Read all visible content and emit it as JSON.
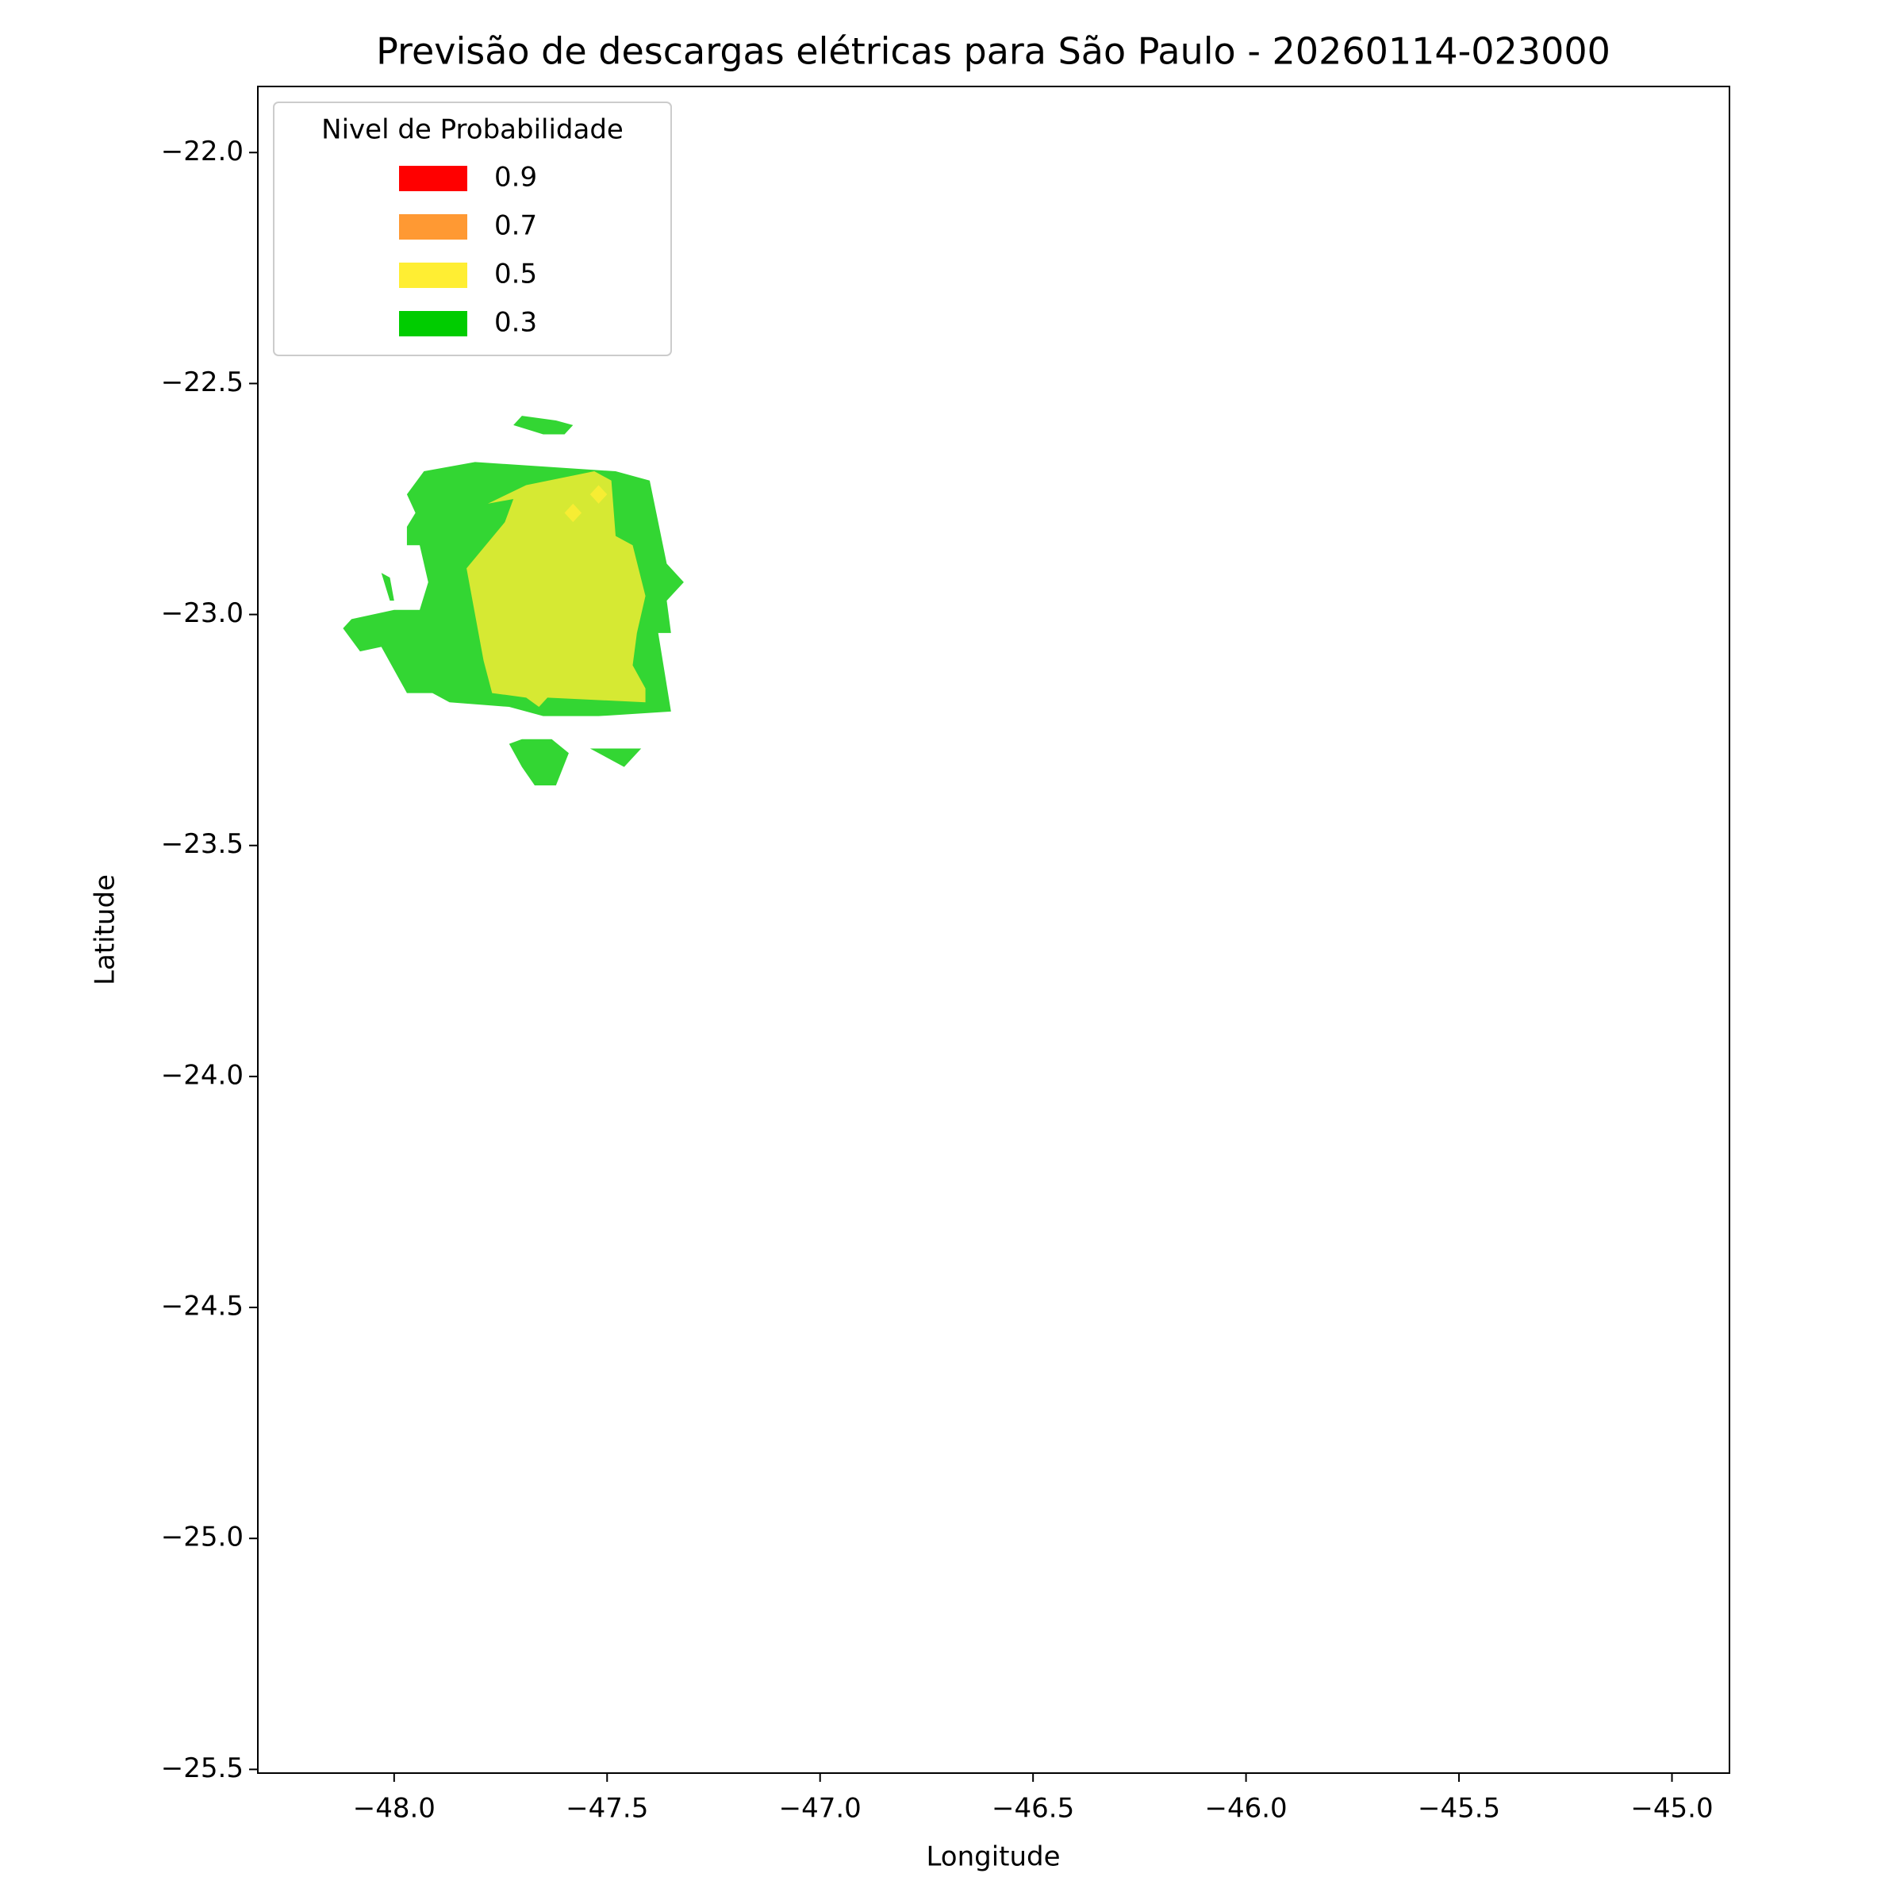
{
  "chart_data": {
    "type": "contour",
    "title": "Previsão de descargas elétricas para São Paulo - 20260114-023000",
    "xlabel": "Longitude",
    "ylabel": "Latitude",
    "xlim": [
      -48.32,
      -44.865
    ],
    "ylim": [
      -25.508,
      -21.857
    ],
    "xticks": [
      {
        "value": -48.0,
        "label": "−48.0"
      },
      {
        "value": -47.5,
        "label": "−47.5"
      },
      {
        "value": -47.0,
        "label": "−47.0"
      },
      {
        "value": -46.5,
        "label": "−46.5"
      },
      {
        "value": -46.0,
        "label": "−46.0"
      },
      {
        "value": -45.5,
        "label": "−45.5"
      },
      {
        "value": -45.0,
        "label": "−45.0"
      }
    ],
    "yticks": [
      {
        "value": -22.0,
        "label": "−22.0"
      },
      {
        "value": -22.5,
        "label": "−22.5"
      },
      {
        "value": -23.0,
        "label": "−23.0"
      },
      {
        "value": -23.5,
        "label": "−23.5"
      },
      {
        "value": -24.0,
        "label": "−24.0"
      },
      {
        "value": -24.5,
        "label": "−24.5"
      },
      {
        "value": -25.0,
        "label": "−25.0"
      },
      {
        "value": -25.5,
        "label": "−25.5"
      }
    ],
    "legend_title": "Nivel de Probabilidade",
    "legend": "upper left",
    "series": [
      {
        "name": "0.9",
        "color": "#ff0000",
        "polygons": []
      },
      {
        "name": "0.7",
        "color": "#ff9933",
        "polygons": []
      },
      {
        "name": "0.5",
        "color": "#ffee33",
        "polygons": [
          [
            [
              -47.83,
              -22.9
            ],
            [
              -47.74,
              -22.8
            ],
            [
              -47.72,
              -22.75
            ],
            [
              -47.78,
              -22.76
            ],
            [
              -47.69,
              -22.72
            ],
            [
              -47.53,
              -22.69
            ],
            [
              -47.49,
              -22.71
            ],
            [
              -47.48,
              -22.83
            ],
            [
              -47.44,
              -22.85
            ],
            [
              -47.41,
              -22.96
            ],
            [
              -47.43,
              -23.04
            ],
            [
              -47.44,
              -23.11
            ],
            [
              -47.41,
              -23.16
            ],
            [
              -47.41,
              -23.19
            ],
            [
              -47.64,
              -23.18
            ],
            [
              -47.66,
              -23.2
            ],
            [
              -47.69,
              -23.18
            ],
            [
              -47.77,
              -23.17
            ],
            [
              -47.79,
              -23.1
            ],
            [
              -47.81,
              -23.0
            ]
          ],
          [
            [
              -47.6,
              -22.78
            ],
            [
              -47.58,
              -22.76
            ],
            [
              -47.56,
              -22.78
            ],
            [
              -47.58,
              -22.8
            ]
          ],
          [
            [
              -47.54,
              -22.74
            ],
            [
              -47.52,
              -22.72
            ],
            [
              -47.5,
              -22.74
            ],
            [
              -47.52,
              -22.76
            ]
          ]
        ]
      },
      {
        "name": "0.3",
        "color": "#00cc00",
        "polygons": [
          [
            [
              -47.97,
              -22.74
            ],
            [
              -47.93,
              -22.69
            ],
            [
              -47.81,
              -22.67
            ],
            [
              -47.48,
              -22.69
            ],
            [
              -47.4,
              -22.71
            ],
            [
              -47.36,
              -22.89
            ],
            [
              -47.32,
              -22.93
            ],
            [
              -47.36,
              -22.97
            ],
            [
              -47.35,
              -23.04
            ],
            [
              -47.38,
              -23.04
            ],
            [
              -47.35,
              -23.21
            ],
            [
              -47.52,
              -23.22
            ],
            [
              -47.65,
              -23.22
            ],
            [
              -47.73,
              -23.2
            ],
            [
              -47.87,
              -23.19
            ],
            [
              -47.91,
              -23.17
            ],
            [
              -47.97,
              -23.17
            ],
            [
              -48.03,
              -23.07
            ],
            [
              -48.08,
              -23.08
            ],
            [
              -48.12,
              -23.03
            ],
            [
              -48.1,
              -23.01
            ],
            [
              -48.0,
              -22.99
            ],
            [
              -47.94,
              -22.99
            ],
            [
              -47.92,
              -22.93
            ],
            [
              -47.94,
              -22.85
            ],
            [
              -47.97,
              -22.85
            ],
            [
              -47.97,
              -22.81
            ],
            [
              -47.95,
              -22.78
            ]
          ],
          [
            [
              -47.72,
              -22.59
            ],
            [
              -47.7,
              -22.57
            ],
            [
              -47.62,
              -22.58
            ],
            [
              -47.58,
              -22.59
            ],
            [
              -47.6,
              -22.61
            ],
            [
              -47.65,
              -22.61
            ]
          ],
          [
            [
              -47.73,
              -23.28
            ],
            [
              -47.7,
              -23.27
            ],
            [
              -47.63,
              -23.27
            ],
            [
              -47.59,
              -23.3
            ],
            [
              -47.62,
              -23.37
            ],
            [
              -47.67,
              -23.37
            ],
            [
              -47.7,
              -23.33
            ]
          ],
          [
            [
              -47.54,
              -23.29
            ],
            [
              -47.42,
              -23.29
            ],
            [
              -47.46,
              -23.33
            ]
          ],
          [
            [
              -48.03,
              -22.91
            ],
            [
              -48.01,
              -22.92
            ],
            [
              -48.0,
              -22.97
            ],
            [
              -48.01,
              -22.97
            ]
          ]
        ]
      }
    ]
  }
}
